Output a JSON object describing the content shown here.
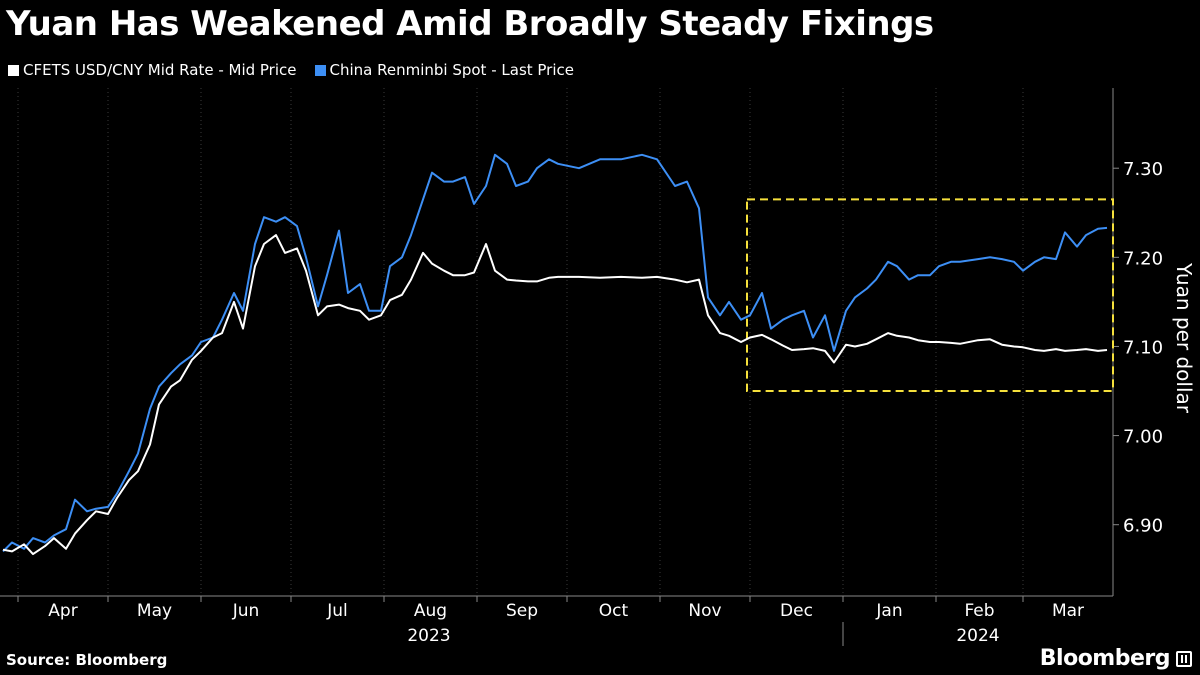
{
  "title": "Yuan Has Weakened Amid Broadly Steady Fixings",
  "source": "Source: Bloomberg",
  "brand": "Bloomberg",
  "chart_data": {
    "type": "line",
    "title": "Yuan Has Weakened Amid Broadly Steady Fixings",
    "ylabel": "Yuan per dollar",
    "xlabel": "",
    "ylim": [
      6.82,
      7.39
    ],
    "yticks": [
      6.9,
      7.0,
      7.1,
      7.2,
      7.3
    ],
    "ytick_labels": [
      "6.90",
      "7.00",
      "7.10",
      "7.20",
      "7.30"
    ],
    "x_range": [
      "2023-03-26",
      "2024-03-31"
    ],
    "months": [
      {
        "label": "Apr",
        "start": "2023-04-01"
      },
      {
        "label": "May",
        "start": "2023-05-01"
      },
      {
        "label": "Jun",
        "start": "2023-06-01"
      },
      {
        "label": "Jul",
        "start": "2023-07-01"
      },
      {
        "label": "Aug",
        "start": "2023-08-01"
      },
      {
        "label": "Sep",
        "start": "2023-09-01"
      },
      {
        "label": "Oct",
        "start": "2023-10-01"
      },
      {
        "label": "Nov",
        "start": "2023-11-01"
      },
      {
        "label": "Dec",
        "start": "2023-12-01"
      },
      {
        "label": "Jan",
        "start": "2024-01-01"
      },
      {
        "label": "Feb",
        "start": "2024-02-01"
      },
      {
        "label": "Mar",
        "start": "2024-03-01"
      }
    ],
    "years": [
      {
        "label": "2023",
        "start": "2023-04-01",
        "end": "2023-12-31"
      },
      {
        "label": "2024",
        "start": "2024-01-01",
        "end": "2024-03-31"
      }
    ],
    "year_boundary": "2024-01-01",
    "highlight": {
      "x_start": "2023-11-30",
      "x_end": "2024-03-31",
      "y_min": 7.05,
      "y_max": 7.265,
      "color": "#f5e03c",
      "style": "dashed"
    },
    "grid": "vertical",
    "legend_position": "top-left",
    "series": [
      {
        "name": "CFETS USD/CNY Mid Rate - Mid Price",
        "color": "#ffffff",
        "points": [
          [
            "2023-03-27",
            6.872
          ],
          [
            "2023-03-30",
            6.87
          ],
          [
            "2023-04-03",
            6.878
          ],
          [
            "2023-04-06",
            6.867
          ],
          [
            "2023-04-10",
            6.876
          ],
          [
            "2023-04-13",
            6.885
          ],
          [
            "2023-04-17",
            6.873
          ],
          [
            "2023-04-20",
            6.89
          ],
          [
            "2023-04-24",
            6.905
          ],
          [
            "2023-04-27",
            6.915
          ],
          [
            "2023-05-01",
            6.912
          ],
          [
            "2023-05-04",
            6.93
          ],
          [
            "2023-05-08",
            6.95
          ],
          [
            "2023-05-11",
            6.96
          ],
          [
            "2023-05-15",
            6.99
          ],
          [
            "2023-05-18",
            7.035
          ],
          [
            "2023-05-22",
            7.055
          ],
          [
            "2023-05-25",
            7.062
          ],
          [
            "2023-05-29",
            7.085
          ],
          [
            "2023-06-01",
            7.095
          ],
          [
            "2023-06-05",
            7.11
          ],
          [
            "2023-06-08",
            7.115
          ],
          [
            "2023-06-12",
            7.15
          ],
          [
            "2023-06-15",
            7.12
          ],
          [
            "2023-06-19",
            7.19
          ],
          [
            "2023-06-22",
            7.215
          ],
          [
            "2023-06-26",
            7.225
          ],
          [
            "2023-06-29",
            7.205
          ],
          [
            "2023-07-03",
            7.21
          ],
          [
            "2023-07-06",
            7.185
          ],
          [
            "2023-07-10",
            7.135
          ],
          [
            "2023-07-13",
            7.145
          ],
          [
            "2023-07-17",
            7.147
          ],
          [
            "2023-07-20",
            7.143
          ],
          [
            "2023-07-24",
            7.14
          ],
          [
            "2023-07-27",
            7.13
          ],
          [
            "2023-07-31",
            7.135
          ],
          [
            "2023-08-03",
            7.152
          ],
          [
            "2023-08-07",
            7.158
          ],
          [
            "2023-08-10",
            7.175
          ],
          [
            "2023-08-14",
            7.205
          ],
          [
            "2023-08-17",
            7.193
          ],
          [
            "2023-08-21",
            7.185
          ],
          [
            "2023-08-24",
            7.18
          ],
          [
            "2023-08-28",
            7.18
          ],
          [
            "2023-08-31",
            7.183
          ],
          [
            "2023-09-04",
            7.215
          ],
          [
            "2023-09-07",
            7.185
          ],
          [
            "2023-09-11",
            7.175
          ],
          [
            "2023-09-14",
            7.174
          ],
          [
            "2023-09-18",
            7.173
          ],
          [
            "2023-09-21",
            7.173
          ],
          [
            "2023-09-25",
            7.177
          ],
          [
            "2023-09-28",
            7.178
          ],
          [
            "2023-10-05",
            7.178
          ],
          [
            "2023-10-12",
            7.177
          ],
          [
            "2023-10-19",
            7.178
          ],
          [
            "2023-10-26",
            7.177
          ],
          [
            "2023-10-31",
            7.178
          ],
          [
            "2023-11-06",
            7.175
          ],
          [
            "2023-11-10",
            7.172
          ],
          [
            "2023-11-14",
            7.175
          ],
          [
            "2023-11-17",
            7.135
          ],
          [
            "2023-11-21",
            7.115
          ],
          [
            "2023-11-24",
            7.112
          ],
          [
            "2023-11-28",
            7.105
          ],
          [
            "2023-12-01",
            7.11
          ],
          [
            "2023-12-05",
            7.113
          ],
          [
            "2023-12-08",
            7.108
          ],
          [
            "2023-12-12",
            7.101
          ],
          [
            "2023-12-15",
            7.096
          ],
          [
            "2023-12-19",
            7.097
          ],
          [
            "2023-12-22",
            7.098
          ],
          [
            "2023-12-26",
            7.095
          ],
          [
            "2023-12-29",
            7.082
          ],
          [
            "2024-01-02",
            7.102
          ],
          [
            "2024-01-05",
            7.1
          ],
          [
            "2024-01-09",
            7.103
          ],
          [
            "2024-01-12",
            7.108
          ],
          [
            "2024-01-16",
            7.115
          ],
          [
            "2024-01-19",
            7.112
          ],
          [
            "2024-01-23",
            7.11
          ],
          [
            "2024-01-26",
            7.107
          ],
          [
            "2024-01-30",
            7.105
          ],
          [
            "2024-02-02",
            7.105
          ],
          [
            "2024-02-06",
            7.104
          ],
          [
            "2024-02-09",
            7.103
          ],
          [
            "2024-02-15",
            7.107
          ],
          [
            "2024-02-19",
            7.108
          ],
          [
            "2024-02-23",
            7.102
          ],
          [
            "2024-02-27",
            7.1
          ],
          [
            "2024-03-01",
            7.099
          ],
          [
            "2024-03-05",
            7.096
          ],
          [
            "2024-03-08",
            7.095
          ],
          [
            "2024-03-12",
            7.097
          ],
          [
            "2024-03-15",
            7.095
          ],
          [
            "2024-03-19",
            7.096
          ],
          [
            "2024-03-22",
            7.097
          ],
          [
            "2024-03-26",
            7.095
          ],
          [
            "2024-03-29",
            7.096
          ]
        ]
      },
      {
        "name": "China Renminbi Spot - Last Price",
        "color": "#3d8ff5",
        "points": [
          [
            "2023-03-27",
            6.87
          ],
          [
            "2023-03-30",
            6.88
          ],
          [
            "2023-04-03",
            6.873
          ],
          [
            "2023-04-06",
            6.885
          ],
          [
            "2023-04-10",
            6.88
          ],
          [
            "2023-04-13",
            6.888
          ],
          [
            "2023-04-17",
            6.895
          ],
          [
            "2023-04-20",
            6.928
          ],
          [
            "2023-04-24",
            6.915
          ],
          [
            "2023-04-27",
            6.918
          ],
          [
            "2023-05-01",
            6.92
          ],
          [
            "2023-05-04",
            6.935
          ],
          [
            "2023-05-08",
            6.96
          ],
          [
            "2023-05-11",
            6.98
          ],
          [
            "2023-05-15",
            7.03
          ],
          [
            "2023-05-18",
            7.055
          ],
          [
            "2023-05-22",
            7.07
          ],
          [
            "2023-05-25",
            7.08
          ],
          [
            "2023-05-29",
            7.09
          ],
          [
            "2023-06-01",
            7.105
          ],
          [
            "2023-06-05",
            7.11
          ],
          [
            "2023-06-08",
            7.13
          ],
          [
            "2023-06-12",
            7.16
          ],
          [
            "2023-06-15",
            7.14
          ],
          [
            "2023-06-19",
            7.215
          ],
          [
            "2023-06-22",
            7.245
          ],
          [
            "2023-06-26",
            7.24
          ],
          [
            "2023-06-29",
            7.245
          ],
          [
            "2023-07-03",
            7.235
          ],
          [
            "2023-07-06",
            7.2
          ],
          [
            "2023-07-10",
            7.145
          ],
          [
            "2023-07-13",
            7.18
          ],
          [
            "2023-07-17",
            7.23
          ],
          [
            "2023-07-20",
            7.16
          ],
          [
            "2023-07-24",
            7.17
          ],
          [
            "2023-07-27",
            7.14
          ],
          [
            "2023-07-31",
            7.14
          ],
          [
            "2023-08-03",
            7.19
          ],
          [
            "2023-08-07",
            7.2
          ],
          [
            "2023-08-10",
            7.225
          ],
          [
            "2023-08-14",
            7.265
          ],
          [
            "2023-08-17",
            7.295
          ],
          [
            "2023-08-21",
            7.285
          ],
          [
            "2023-08-24",
            7.285
          ],
          [
            "2023-08-28",
            7.29
          ],
          [
            "2023-08-31",
            7.26
          ],
          [
            "2023-09-04",
            7.28
          ],
          [
            "2023-09-07",
            7.315
          ],
          [
            "2023-09-11",
            7.305
          ],
          [
            "2023-09-14",
            7.28
          ],
          [
            "2023-09-18",
            7.285
          ],
          [
            "2023-09-21",
            7.3
          ],
          [
            "2023-09-25",
            7.31
          ],
          [
            "2023-09-28",
            7.305
          ],
          [
            "2023-10-05",
            7.3
          ],
          [
            "2023-10-12",
            7.31
          ],
          [
            "2023-10-19",
            7.31
          ],
          [
            "2023-10-26",
            7.315
          ],
          [
            "2023-10-31",
            7.31
          ],
          [
            "2023-11-06",
            7.28
          ],
          [
            "2023-11-10",
            7.285
          ],
          [
            "2023-11-14",
            7.255
          ],
          [
            "2023-11-17",
            7.155
          ],
          [
            "2023-11-21",
            7.135
          ],
          [
            "2023-11-24",
            7.15
          ],
          [
            "2023-11-28",
            7.13
          ],
          [
            "2023-12-01",
            7.135
          ],
          [
            "2023-12-05",
            7.16
          ],
          [
            "2023-12-08",
            7.12
          ],
          [
            "2023-12-12",
            7.13
          ],
          [
            "2023-12-15",
            7.135
          ],
          [
            "2023-12-19",
            7.14
          ],
          [
            "2023-12-22",
            7.11
          ],
          [
            "2023-12-26",
            7.135
          ],
          [
            "2023-12-29",
            7.095
          ],
          [
            "2024-01-02",
            7.14
          ],
          [
            "2024-01-05",
            7.155
          ],
          [
            "2024-01-09",
            7.165
          ],
          [
            "2024-01-12",
            7.175
          ],
          [
            "2024-01-16",
            7.195
          ],
          [
            "2024-01-19",
            7.19
          ],
          [
            "2024-01-23",
            7.175
          ],
          [
            "2024-01-26",
            7.18
          ],
          [
            "2024-01-30",
            7.18
          ],
          [
            "2024-02-02",
            7.19
          ],
          [
            "2024-02-06",
            7.195
          ],
          [
            "2024-02-09",
            7.195
          ],
          [
            "2024-02-15",
            7.198
          ],
          [
            "2024-02-19",
            7.2
          ],
          [
            "2024-02-23",
            7.198
          ],
          [
            "2024-02-27",
            7.195
          ],
          [
            "2024-03-01",
            7.185
          ],
          [
            "2024-03-05",
            7.195
          ],
          [
            "2024-03-08",
            7.2
          ],
          [
            "2024-03-12",
            7.198
          ],
          [
            "2024-03-15",
            7.228
          ],
          [
            "2024-03-19",
            7.212
          ],
          [
            "2024-03-22",
            7.225
          ],
          [
            "2024-03-26",
            7.232
          ],
          [
            "2024-03-29",
            7.233
          ]
        ]
      }
    ]
  }
}
